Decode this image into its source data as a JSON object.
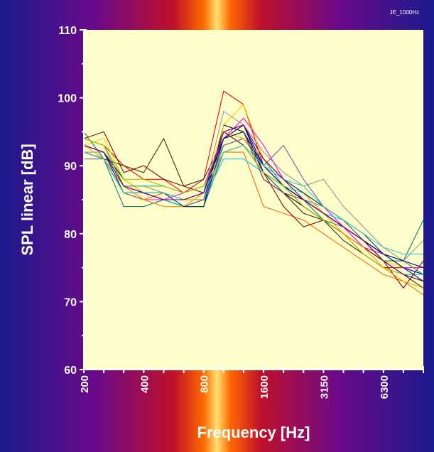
{
  "chart_data": {
    "type": "line",
    "title": "JE_1000Hz",
    "y_label": "SPL linear [dB]",
    "x_label": "Frequency [Hz]",
    "categories": [
      "200",
      null,
      null,
      "400",
      null,
      null,
      "800",
      null,
      null,
      "1600",
      null,
      null,
      "3150",
      null,
      null,
      "6300",
      null,
      null
    ],
    "ylim": [
      60,
      110
    ],
    "yticks": [
      60,
      70,
      80,
      90,
      100,
      110
    ],
    "yminor_ticks": [
      65,
      75,
      85,
      95,
      105
    ],
    "plot_background": "#ffffcc",
    "series": [
      {
        "color": "#ff0000",
        "values": [
          94,
          93,
          90,
          88,
          88,
          86,
          88,
          101,
          99,
          90,
          87,
          84,
          82,
          80,
          77,
          75,
          75,
          74
        ]
      },
      {
        "color": "#000000",
        "values": [
          93,
          92,
          88,
          86,
          85,
          84,
          84,
          96,
          95,
          89,
          86,
          84,
          82,
          80,
          78,
          76,
          74,
          73
        ]
      },
      {
        "color": "#333300",
        "values": [
          92,
          91,
          90,
          89,
          94,
          87,
          88,
          94,
          95,
          88,
          86,
          83,
          82,
          79,
          77,
          75,
          74,
          72
        ]
      },
      {
        "color": "#ffcc00",
        "values": [
          93,
          94,
          88,
          86,
          86,
          85,
          86,
          96,
          99,
          91,
          88,
          85,
          83,
          81,
          78,
          76,
          75,
          75
        ]
      },
      {
        "color": "#0000ff",
        "values": [
          93,
          92,
          87,
          86,
          85,
          84,
          85,
          95,
          96,
          90,
          87,
          85,
          83,
          81,
          79,
          77,
          75,
          74
        ]
      },
      {
        "color": "#008080",
        "values": [
          95,
          91,
          84,
          84,
          85,
          84,
          84,
          92,
          93,
          89,
          86,
          85,
          82,
          81,
          79,
          76,
          76,
          82
        ]
      },
      {
        "color": "#ff6600",
        "values": [
          92,
          91,
          86,
          85,
          86,
          85,
          85,
          92,
          92,
          84,
          83,
          82,
          80,
          78,
          76,
          74,
          73,
          71
        ]
      },
      {
        "color": "#800000",
        "values": [
          94,
          95,
          89,
          90,
          88,
          87,
          86,
          95,
          93,
          89,
          84,
          81,
          82,
          80,
          78,
          76,
          72,
          76
        ]
      },
      {
        "color": "#969696",
        "values": [
          92,
          92,
          87,
          87,
          86,
          85,
          86,
          98,
          96,
          92,
          89,
          87,
          88,
          84,
          81,
          78,
          76,
          79
        ]
      },
      {
        "color": "#ff00ff",
        "values": [
          92,
          91,
          87,
          85,
          85,
          86,
          87,
          94,
          97,
          93,
          88,
          86,
          84,
          81,
          78,
          77,
          75,
          75
        ]
      },
      {
        "color": "#00ccff",
        "values": [
          93,
          92,
          86,
          86,
          85,
          84,
          85,
          91,
          91,
          89,
          87,
          86,
          83,
          82,
          79,
          76,
          74,
          74
        ]
      },
      {
        "color": "#339966",
        "values": [
          94,
          93,
          87,
          87,
          87,
          86,
          87,
          93,
          94,
          91,
          87,
          85,
          84,
          82,
          79,
          77,
          76,
          74
        ]
      },
      {
        "color": "#993366",
        "values": [
          93,
          92,
          87,
          86,
          86,
          85,
          86,
          94,
          95,
          88,
          86,
          85,
          83,
          81,
          79,
          77,
          75,
          73
        ]
      },
      {
        "color": "#000080",
        "values": [
          92,
          91,
          86,
          86,
          85,
          85,
          86,
          94,
          96,
          89,
          87,
          85,
          83,
          81,
          79,
          77,
          76,
          75
        ]
      },
      {
        "color": "#99cc00",
        "values": [
          94,
          93,
          88,
          88,
          87,
          86,
          87,
          92,
          93,
          89,
          87,
          84,
          82,
          80,
          77,
          75,
          74,
          73
        ]
      },
      {
        "color": "#666699",
        "values": [
          91,
          91,
          86,
          85,
          84,
          84,
          85,
          93,
          94,
          90,
          93,
          88,
          84,
          82,
          79,
          76,
          74,
          73
        ]
      },
      {
        "color": "#ff9900",
        "values": [
          93,
          91,
          87,
          85,
          84,
          84,
          86,
          95,
          94,
          91,
          88,
          86,
          83,
          80,
          78,
          75,
          73,
          72
        ]
      },
      {
        "color": "#003366",
        "values": [
          93,
          92,
          86,
          86,
          86,
          84,
          84,
          94,
          95,
          90,
          88,
          86,
          84,
          82,
          80,
          77,
          75,
          73
        ]
      },
      {
        "color": "#33cccc",
        "values": [
          92,
          91,
          86,
          86,
          86,
          85,
          86,
          92,
          93,
          90,
          88,
          87,
          84,
          82,
          80,
          78,
          77,
          77
        ]
      },
      {
        "color": "#800080",
        "values": [
          93,
          92,
          87,
          86,
          85,
          85,
          86,
          95,
          96,
          91,
          88,
          85,
          83,
          81,
          79,
          76,
          74,
          73
        ]
      }
    ]
  }
}
